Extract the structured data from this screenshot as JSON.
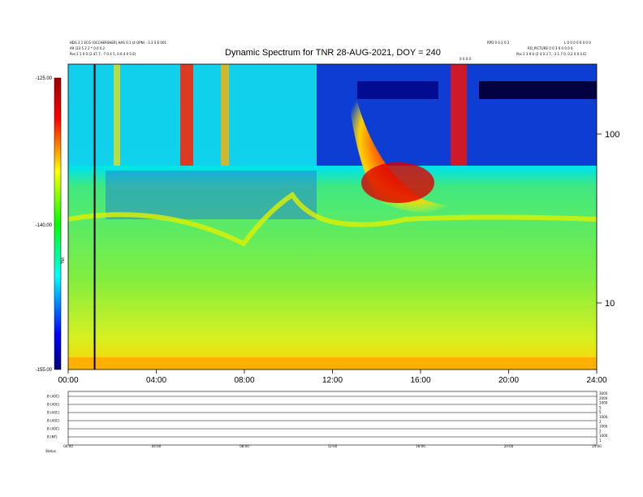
{
  "chart_data": {
    "type": "heatmap",
    "title": "Dynamic Spectrum for TNR 28-AUG-2021, DOY = 240",
    "header_left": [
      "HDS 3.1 ECG (OCCHERSHER) HAS 0.1 (4 OPN) - 3.3 S E 001",
      "A9 (23 5 2 2 * 0.0 0.2",
      "Pos 2 1 0 0 (2.47.7, -7 0.4 5, 0.6 4 0 S E)"
    ],
    "header_right": [
      "RPD 0 0 2 0 2",
      "L 0 0 0 0 0 0 0 0",
      "RO_PICTURE 0 0 3 0 0 0 0 0",
      "Pos 2 3 0 0 (2 4 0.3 7, -3 1.7 0, 0.2 0 0 S E)"
    ],
    "marker_label": "0 0 0 0",
    "x_ticks": [
      "00:00",
      "04:00",
      "08:00",
      "12:00",
      "16:00",
      "20:00",
      "24:00"
    ],
    "x_range_hours": [
      0,
      24
    ],
    "right_axis": {
      "scale": "log",
      "ticks": [
        "100",
        "10"
      ],
      "tick_values": [
        100,
        10
      ]
    },
    "colorbar": {
      "ticks": [
        "-125.00",
        "-140.00",
        "-155.00"
      ],
      "values": [
        -125,
        -140,
        -155
      ],
      "label": "TNR"
    },
    "vertical_marker_hour": 1.2,
    "bottom_panel": {
      "labels": [
        "B (A0C)",
        "B (A0C)",
        "B (A0C)",
        "B (A0C)",
        "B (A0C)",
        "B (NT)"
      ],
      "right_ticks": [
        "3000",
        "2000",
        "1000",
        "5",
        "5",
        "1000",
        "2",
        "1000",
        "2",
        "1000",
        "1"
      ],
      "x_ticks": [
        "00:00",
        "04:00",
        "08:00",
        "12:00",
        "16:00",
        "20:00",
        "24:00"
      ],
      "footer_label": "Status"
    }
  }
}
